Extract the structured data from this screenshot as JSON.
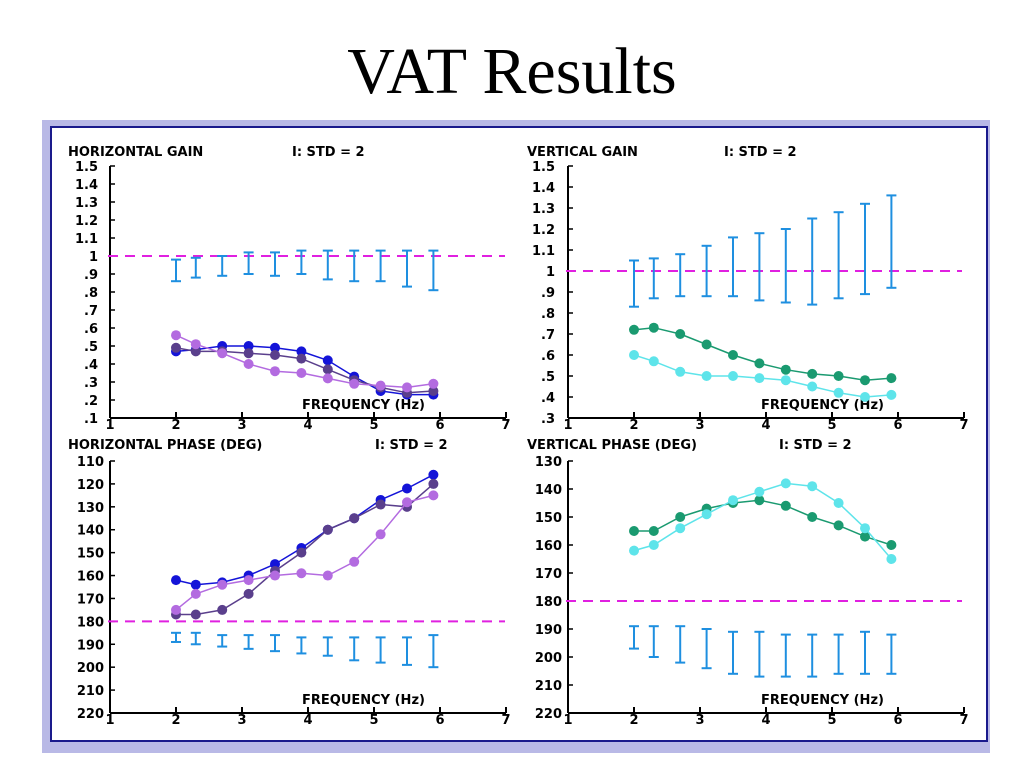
{
  "slide": {
    "title": "VAT Results"
  },
  "colors": {
    "reference_line": "#e020e0",
    "std_bars": "#1e8fe0",
    "blue": "#1414d8",
    "purple": "#5a3f8c",
    "violet": "#b36be0",
    "teal": "#1a9a70",
    "cyan": "#5ee4ea"
  },
  "chart_data": [
    {
      "type": "line",
      "title": "HORIZONTAL GAIN",
      "std_label": "I: STD = 2",
      "xlabel": "FREQUENCY (Hz)",
      "ylabel": "",
      "xlim": [
        1,
        7
      ],
      "ylim": [
        0.1,
        1.5
      ],
      "x_ticks": [
        "1",
        "2",
        "3",
        "4",
        "5",
        "6",
        "7"
      ],
      "y_ticks": [
        "1.5",
        "1.4",
        "1.3",
        "1.2",
        "1.1",
        "1",
        ".9",
        ".8",
        ".7",
        ".6",
        ".5",
        ".4",
        ".3",
        ".2",
        ".1"
      ],
      "reference_line": 1.0,
      "error_bars": [
        {
          "x": 2.0,
          "low": 0.86,
          "high": 0.98
        },
        {
          "x": 2.3,
          "low": 0.88,
          "high": 0.99
        },
        {
          "x": 2.7,
          "low": 0.89,
          "high": 1.0
        },
        {
          "x": 3.1,
          "low": 0.9,
          "high": 1.02
        },
        {
          "x": 3.5,
          "low": 0.89,
          "high": 1.02
        },
        {
          "x": 3.9,
          "low": 0.9,
          "high": 1.03
        },
        {
          "x": 4.3,
          "low": 0.87,
          "high": 1.03
        },
        {
          "x": 4.7,
          "low": 0.86,
          "high": 1.03
        },
        {
          "x": 5.1,
          "low": 0.86,
          "high": 1.03
        },
        {
          "x": 5.5,
          "low": 0.83,
          "high": 1.03
        },
        {
          "x": 5.9,
          "low": 0.81,
          "high": 1.03
        }
      ],
      "series": [
        {
          "color": "#1414d8",
          "points": [
            [
              2.0,
              0.47
            ],
            [
              2.3,
              0.48
            ],
            [
              2.7,
              0.5
            ],
            [
              3.1,
              0.5
            ],
            [
              3.5,
              0.49
            ],
            [
              3.9,
              0.47
            ],
            [
              4.3,
              0.42
            ],
            [
              4.7,
              0.33
            ],
            [
              5.1,
              0.25
            ],
            [
              5.5,
              0.23
            ],
            [
              5.9,
              0.23
            ]
          ]
        },
        {
          "color": "#5a3f8c",
          "points": [
            [
              2.0,
              0.49
            ],
            [
              2.3,
              0.47
            ],
            [
              2.7,
              0.47
            ],
            [
              3.1,
              0.46
            ],
            [
              3.5,
              0.45
            ],
            [
              3.9,
              0.43
            ],
            [
              4.3,
              0.37
            ],
            [
              4.7,
              0.31
            ],
            [
              5.1,
              0.27
            ],
            [
              5.5,
              0.24
            ],
            [
              5.9,
              0.25
            ]
          ]
        },
        {
          "color": "#b36be0",
          "points": [
            [
              2.0,
              0.56
            ],
            [
              2.3,
              0.51
            ],
            [
              2.7,
              0.46
            ],
            [
              3.1,
              0.4
            ],
            [
              3.5,
              0.36
            ],
            [
              3.9,
              0.35
            ],
            [
              4.3,
              0.32
            ],
            [
              4.7,
              0.29
            ],
            [
              5.1,
              0.28
            ],
            [
              5.5,
              0.27
            ],
            [
              5.9,
              0.29
            ]
          ]
        }
      ]
    },
    {
      "type": "line",
      "title": "VERTICAL GAIN",
      "std_label": "I: STD = 2",
      "xlabel": "FREQUENCY (Hz)",
      "ylabel": "",
      "xlim": [
        1,
        7
      ],
      "ylim": [
        0.3,
        1.5
      ],
      "x_ticks": [
        "1",
        "2",
        "3",
        "4",
        "5",
        "6",
        "7"
      ],
      "y_ticks": [
        "1.5",
        "1.4",
        "1.3",
        "1.2",
        "1.1",
        "1",
        ".9",
        ".8",
        ".7",
        ".6",
        ".5",
        ".4",
        ".3"
      ],
      "reference_line": 1.0,
      "error_bars": [
        {
          "x": 2.0,
          "low": 0.83,
          "high": 1.05
        },
        {
          "x": 2.3,
          "low": 0.87,
          "high": 1.06
        },
        {
          "x": 2.7,
          "low": 0.88,
          "high": 1.08
        },
        {
          "x": 3.1,
          "low": 0.88,
          "high": 1.12
        },
        {
          "x": 3.5,
          "low": 0.88,
          "high": 1.16
        },
        {
          "x": 3.9,
          "low": 0.86,
          "high": 1.18
        },
        {
          "x": 4.3,
          "low": 0.85,
          "high": 1.2
        },
        {
          "x": 4.7,
          "low": 0.84,
          "high": 1.25
        },
        {
          "x": 5.1,
          "low": 0.87,
          "high": 1.28
        },
        {
          "x": 5.5,
          "low": 0.89,
          "high": 1.32
        },
        {
          "x": 5.9,
          "low": 0.92,
          "high": 1.36
        }
      ],
      "series": [
        {
          "color": "#1a9a70",
          "points": [
            [
              2.0,
              0.72
            ],
            [
              2.3,
              0.73
            ],
            [
              2.7,
              0.7
            ],
            [
              3.1,
              0.65
            ],
            [
              3.5,
              0.6
            ],
            [
              3.9,
              0.56
            ],
            [
              4.3,
              0.53
            ],
            [
              4.7,
              0.51
            ],
            [
              5.1,
              0.5
            ],
            [
              5.5,
              0.48
            ],
            [
              5.9,
              0.49
            ]
          ]
        },
        {
          "color": "#5ee4ea",
          "points": [
            [
              2.0,
              0.6
            ],
            [
              2.3,
              0.57
            ],
            [
              2.7,
              0.52
            ],
            [
              3.1,
              0.5
            ],
            [
              3.5,
              0.5
            ],
            [
              3.9,
              0.49
            ],
            [
              4.3,
              0.48
            ],
            [
              4.7,
              0.45
            ],
            [
              5.1,
              0.42
            ],
            [
              5.5,
              0.4
            ],
            [
              5.9,
              0.41
            ]
          ]
        }
      ]
    },
    {
      "type": "line",
      "title": "HORIZONTAL PHASE (DEG)",
      "std_label": "I: STD = 2",
      "xlabel": "FREQUENCY (Hz)",
      "ylabel": "",
      "xlim": [
        1,
        7
      ],
      "ylim": [
        220,
        110
      ],
      "x_ticks": [
        "1",
        "2",
        "3",
        "4",
        "5",
        "6",
        "7"
      ],
      "y_ticks": [
        "110",
        "120",
        "130",
        "140",
        "150",
        "160",
        "170",
        "180",
        "190",
        "200",
        "210",
        "220"
      ],
      "reference_line": 180,
      "error_bars": [
        {
          "x": 2.0,
          "low": 185,
          "high": 189
        },
        {
          "x": 2.3,
          "low": 185,
          "high": 190
        },
        {
          "x": 2.7,
          "low": 186,
          "high": 191
        },
        {
          "x": 3.1,
          "low": 186,
          "high": 192
        },
        {
          "x": 3.5,
          "low": 186,
          "high": 193
        },
        {
          "x": 3.9,
          "low": 187,
          "high": 194
        },
        {
          "x": 4.3,
          "low": 187,
          "high": 195
        },
        {
          "x": 4.7,
          "low": 187,
          "high": 197
        },
        {
          "x": 5.1,
          "low": 187,
          "high": 198
        },
        {
          "x": 5.5,
          "low": 187,
          "high": 199
        },
        {
          "x": 5.9,
          "low": 186,
          "high": 200
        }
      ],
      "series": [
        {
          "color": "#1414d8",
          "points": [
            [
              2.0,
              162
            ],
            [
              2.3,
              164
            ],
            [
              2.7,
              163
            ],
            [
              3.1,
              160
            ],
            [
              3.5,
              155
            ],
            [
              3.9,
              148
            ],
            [
              4.3,
              140
            ],
            [
              4.7,
              135
            ],
            [
              5.1,
              127
            ],
            [
              5.5,
              122
            ],
            [
              5.9,
              116
            ]
          ]
        },
        {
          "color": "#5a3f8c",
          "points": [
            [
              2.0,
              177
            ],
            [
              2.3,
              177
            ],
            [
              2.7,
              175
            ],
            [
              3.1,
              168
            ],
            [
              3.5,
              158
            ],
            [
              3.9,
              150
            ],
            [
              4.3,
              140
            ],
            [
              4.7,
              135
            ],
            [
              5.1,
              129
            ],
            [
              5.5,
              130
            ],
            [
              5.9,
              120
            ]
          ]
        },
        {
          "color": "#b36be0",
          "points": [
            [
              2.0,
              175
            ],
            [
              2.3,
              168
            ],
            [
              2.7,
              164
            ],
            [
              3.1,
              162
            ],
            [
              3.5,
              160
            ],
            [
              3.9,
              159
            ],
            [
              4.3,
              160
            ],
            [
              4.7,
              154
            ],
            [
              5.1,
              142
            ],
            [
              5.5,
              128
            ],
            [
              5.9,
              125
            ]
          ]
        }
      ]
    },
    {
      "type": "line",
      "title": "VERTICAL PHASE (DEG)",
      "std_label": "I: STD = 2",
      "xlabel": "FREQUENCY (Hz)",
      "ylabel": "",
      "xlim": [
        1,
        7
      ],
      "ylim": [
        220,
        130
      ],
      "x_ticks": [
        "1",
        "2",
        "3",
        "4",
        "5",
        "6",
        "7"
      ],
      "y_ticks": [
        "130",
        "140",
        "150",
        "160",
        "170",
        "180",
        "190",
        "200",
        "210",
        "220"
      ],
      "reference_line": 180,
      "error_bars": [
        {
          "x": 2.0,
          "low": 189,
          "high": 197
        },
        {
          "x": 2.3,
          "low": 189,
          "high": 200
        },
        {
          "x": 2.7,
          "low": 189,
          "high": 202
        },
        {
          "x": 3.1,
          "low": 190,
          "high": 204
        },
        {
          "x": 3.5,
          "low": 191,
          "high": 206
        },
        {
          "x": 3.9,
          "low": 191,
          "high": 207
        },
        {
          "x": 4.3,
          "low": 192,
          "high": 207
        },
        {
          "x": 4.7,
          "low": 192,
          "high": 207
        },
        {
          "x": 5.1,
          "low": 192,
          "high": 206
        },
        {
          "x": 5.5,
          "low": 191,
          "high": 206
        },
        {
          "x": 5.9,
          "low": 192,
          "high": 206
        }
      ],
      "series": [
        {
          "color": "#1a9a70",
          "points": [
            [
              2.0,
              155
            ],
            [
              2.3,
              155
            ],
            [
              2.7,
              150
            ],
            [
              3.1,
              147
            ],
            [
              3.5,
              145
            ],
            [
              3.9,
              144
            ],
            [
              4.3,
              146
            ],
            [
              4.7,
              150
            ],
            [
              5.1,
              153
            ],
            [
              5.5,
              157
            ],
            [
              5.9,
              160
            ]
          ]
        },
        {
          "color": "#5ee4ea",
          "points": [
            [
              2.0,
              162
            ],
            [
              2.3,
              160
            ],
            [
              2.7,
              154
            ],
            [
              3.1,
              149
            ],
            [
              3.5,
              144
            ],
            [
              3.9,
              141
            ],
            [
              4.3,
              138
            ],
            [
              4.7,
              139
            ],
            [
              5.1,
              145
            ],
            [
              5.5,
              154
            ],
            [
              5.9,
              165
            ]
          ]
        }
      ]
    }
  ]
}
